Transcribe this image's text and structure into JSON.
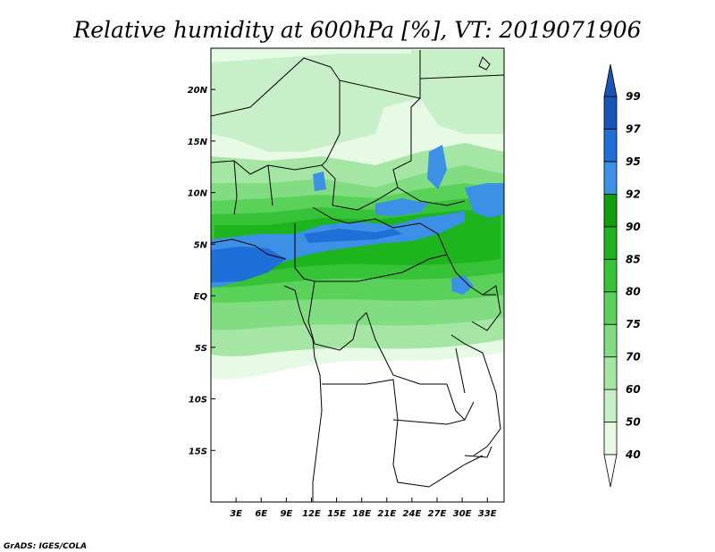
{
  "title": "Relative humidity at 600hPa [%], VT: 2019071906",
  "credit": "GrADS: IGES/COLA",
  "map": {
    "lon_range": [
      0,
      35
    ],
    "lat_range": [
      -20,
      24
    ],
    "x_ticks": [
      "3E",
      "6E",
      "9E",
      "12E",
      "15E",
      "18E",
      "21E",
      "24E",
      "27E",
      "30E",
      "33E"
    ],
    "x_tick_values": [
      3,
      6,
      9,
      12,
      15,
      18,
      21,
      24,
      27,
      30,
      33
    ],
    "y_ticks": [
      "20N",
      "15N",
      "10N",
      "5N",
      "EQ",
      "5S",
      "10S",
      "15S"
    ],
    "y_tick_values": [
      20,
      15,
      10,
      5,
      0,
      -5,
      -10,
      -15
    ]
  },
  "colorbar": {
    "levels": [
      "40",
      "50",
      "60",
      "70",
      "75",
      "80",
      "85",
      "90",
      "92",
      "95",
      "97",
      "99"
    ],
    "colors": [
      "#ffffff",
      "#e6fae6",
      "#c8f0c8",
      "#a5e6a5",
      "#82dc82",
      "#5ad25a",
      "#37c337",
      "#1eb41e",
      "#0f9f0f",
      "#3c91e6",
      "#1f6fd8",
      "#1656b8"
    ]
  }
}
